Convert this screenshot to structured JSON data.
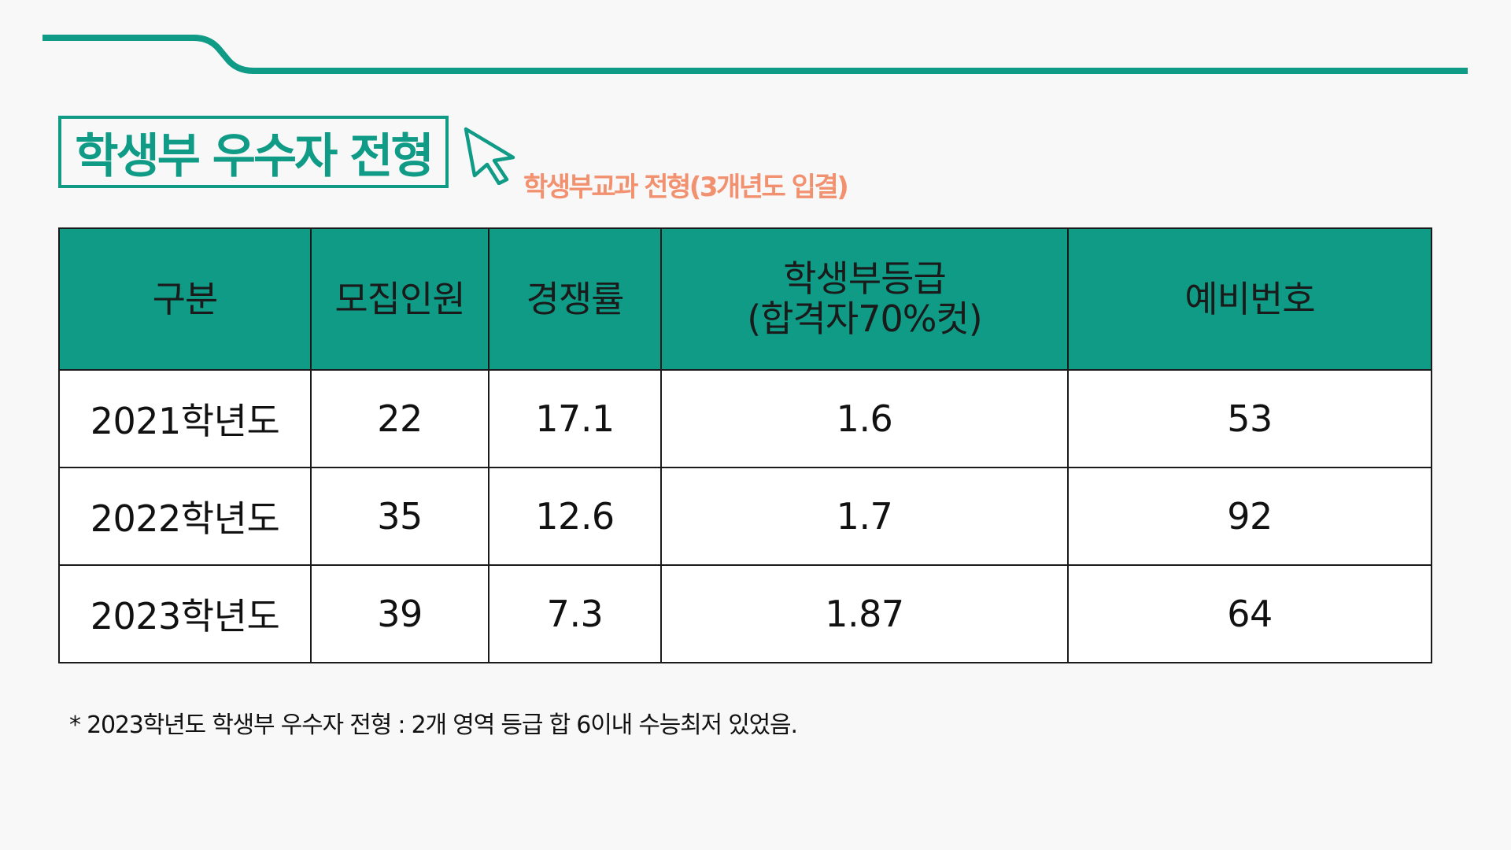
{
  "title": "학생부 우수자 전형",
  "subtitle": "학생부교과 전형(3개년도 입결)",
  "colors": {
    "accent": "#0f9b86",
    "subtitle": "#f2916f",
    "background": "#f8f8f8"
  },
  "icons": {
    "pointer": "cursor-arrow-icon"
  },
  "table": {
    "headers": [
      {
        "line1": "구분",
        "line2": ""
      },
      {
        "line1": "모집인원",
        "line2": ""
      },
      {
        "line1": "경쟁률",
        "line2": ""
      },
      {
        "line1": "학생부등급",
        "line2": "(합격자70%컷)"
      },
      {
        "line1": "예비번호",
        "line2": ""
      }
    ],
    "rows": [
      [
        "2021학년도",
        "22",
        "17.1",
        "1.6",
        "53"
      ],
      [
        "2022학년도",
        "35",
        "12.6",
        "1.7",
        "92"
      ],
      [
        "2023학년도",
        "39",
        "7.3",
        "1.87",
        "64"
      ]
    ]
  },
  "footnote": "* 2023학년도 학생부 우수자 전형 : 2개 영역 등급 합 6이내 수능최저 있었음."
}
